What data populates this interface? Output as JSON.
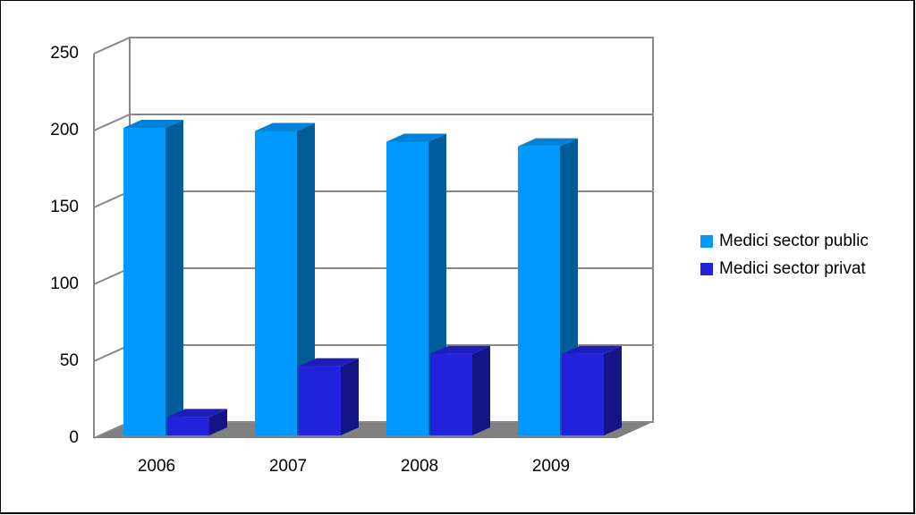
{
  "chart_data": {
    "type": "bar3d",
    "categories": [
      "2006",
      "2007",
      "2008",
      "2009"
    ],
    "series": [
      {
        "name": "Medici sector public",
        "color": "#0099ff",
        "values": [
          200,
          198,
          191,
          188
        ]
      },
      {
        "name": "Medici sector privat",
        "color": "#2222dd",
        "values": [
          12,
          45,
          53,
          53
        ]
      }
    ],
    "ylim": [
      0,
      250
    ],
    "yticks": [
      0,
      50,
      100,
      150,
      200,
      250
    ],
    "grid": true,
    "legend": "right"
  }
}
